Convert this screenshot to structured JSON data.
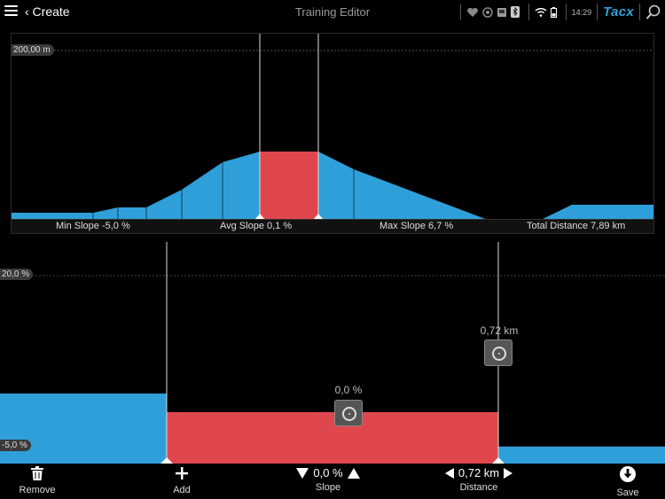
{
  "header": {
    "back_label": "‹ Create",
    "title": "Training Editor",
    "clock": "14:29",
    "brand": "Tacx"
  },
  "overview": {
    "scale_label": "200,00 m",
    "stats": {
      "min_slope": "Min Slope -5,0 %",
      "avg_slope": "Avg Slope 0,1 %",
      "max_slope": "Max Slope 6,7 %",
      "total_distance": "Total Distance 7,89 km"
    }
  },
  "detail": {
    "scale_top": "20,0 %",
    "scale_bottom": "-5,0 %",
    "selected_slope_label": "0,0 %",
    "selected_distance_label": "0,72 km"
  },
  "toolbar": {
    "remove_label": "Remove",
    "add_label": "Add",
    "slope_value": "0,0 %",
    "slope_label": "Slope",
    "distance_value": "0,72 km",
    "distance_label": "Distance",
    "save_label": "Save"
  },
  "colors": {
    "segment_blue": "#2f9fd9",
    "selected_red": "#e0474d",
    "brand_blue": "#2ea0dd"
  },
  "chart_data": {
    "type": "area",
    "series": [
      {
        "name": "",
        "x": [
          0,
          1,
          2,
          3,
          4,
          5,
          6,
          7,
          8,
          9,
          10,
          11,
          12,
          13
        ],
        "values": [
          -5.0,
          -5.0,
          -2.0,
          -2.0,
          2.0,
          5.5,
          6.7,
          6.7,
          0.0,
          4.0,
          2.0,
          -5.0,
          -5.0,
          0.5
        ]
      }
    ],
    "selected_segment": {
      "slope_percent": 0.0,
      "distance_km": 0.72
    }
  }
}
